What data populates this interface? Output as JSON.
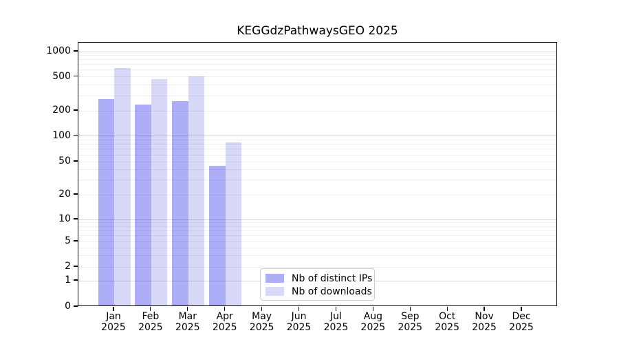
{
  "title": "KEGGdzPathwaysGEO 2025",
  "legend": {
    "items": [
      {
        "label": "Nb of distinct IPs",
        "color": "#adadf8"
      },
      {
        "label": "Nb of downloads",
        "color": "#d8d8f9"
      }
    ]
  },
  "chart_data": {
    "type": "bar",
    "title": "KEGGdzPathwaysGEO 2025",
    "categories": [
      "Jan 2025",
      "Feb 2025",
      "Mar 2025",
      "Apr 2025",
      "May 2025",
      "Jun 2025",
      "Jul 2025",
      "Aug 2025",
      "Sep 2025",
      "Oct 2025",
      "Nov 2025",
      "Dec 2025"
    ],
    "x_months": [
      "Jan",
      "Feb",
      "Mar",
      "Apr",
      "May",
      "Jun",
      "Jul",
      "Aug",
      "Sep",
      "Oct",
      "Nov",
      "Dec"
    ],
    "x_year": "2025",
    "series": [
      {
        "name": "Nb of distinct IPs",
        "color": "#adadf8",
        "values": [
          265,
          228,
          250,
          43,
          null,
          null,
          null,
          null,
          null,
          null,
          null,
          null
        ]
      },
      {
        "name": "Nb of downloads",
        "color": "#d8d8f9",
        "values": [
          610,
          450,
          490,
          81,
          null,
          null,
          null,
          null,
          null,
          null,
          null,
          null
        ]
      }
    ],
    "yaxis": {
      "ticks": [
        0,
        1,
        2,
        5,
        10,
        20,
        50,
        100,
        200,
        500,
        1000
      ],
      "scale": "log-like with linear segment near zero",
      "range": [
        0,
        1300
      ]
    },
    "grid": {
      "orientation": "horizontal",
      "major_lines": [
        1,
        10,
        100,
        1000
      ],
      "minor_lines": [
        2,
        3,
        4,
        5,
        6,
        7,
        8,
        9,
        20,
        30,
        40,
        50,
        60,
        70,
        80,
        90,
        200,
        300,
        400,
        500,
        600,
        700,
        800,
        900
      ]
    },
    "legend_position": "inside lower-center"
  }
}
